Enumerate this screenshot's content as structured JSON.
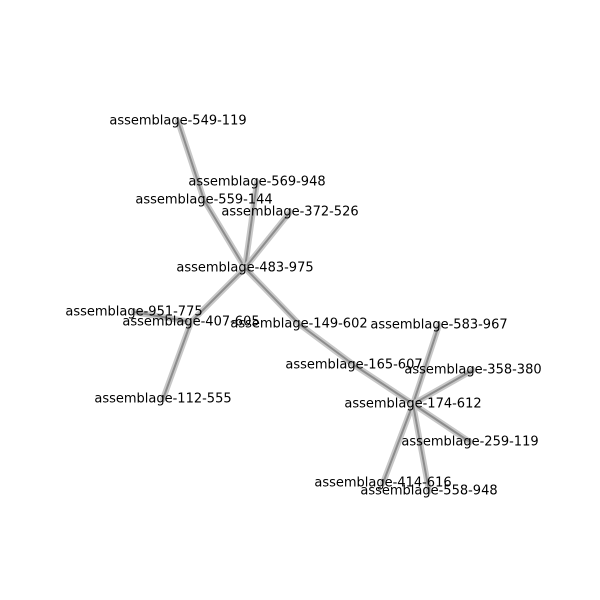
{
  "colors": {
    "background": "#ffffff",
    "edge_outer": "#c8c8c8",
    "edge_inner": "#8c8c8c",
    "label": "#000000"
  },
  "nodes": [
    {
      "id": "n549119",
      "label": "assemblage-549-119"
    },
    {
      "id": "n569948",
      "label": "assemblage-569-948"
    },
    {
      "id": "n559144",
      "label": "assemblage-559-144"
    },
    {
      "id": "n372526",
      "label": "assemblage-372-526"
    },
    {
      "id": "n483975",
      "label": "assemblage-483-975"
    },
    {
      "id": "n951775",
      "label": "assemblage-951-775"
    },
    {
      "id": "n407605",
      "label": "assemblage-407-605"
    },
    {
      "id": "n149602",
      "label": "assemblage-149-602"
    },
    {
      "id": "n583967",
      "label": "assemblage-583-967"
    },
    {
      "id": "n165607",
      "label": "assemblage-165-607"
    },
    {
      "id": "n358380",
      "label": "assemblage-358-380"
    },
    {
      "id": "n112555",
      "label": "assemblage-112-555"
    },
    {
      "id": "n174612",
      "label": "assemblage-174-612"
    },
    {
      "id": "n259119",
      "label": "assemblage-259-119"
    },
    {
      "id": "n414616",
      "label": "assemblage-414-616"
    },
    {
      "id": "n558948",
      "label": "assemblage-558-948"
    }
  ],
  "edges": [
    [
      "n549119",
      "n559144"
    ],
    [
      "n559144",
      "n483975"
    ],
    [
      "n569948",
      "n483975"
    ],
    [
      "n372526",
      "n483975"
    ],
    [
      "n483975",
      "n407605"
    ],
    [
      "n483975",
      "n149602"
    ],
    [
      "n951775",
      "n407605"
    ],
    [
      "n407605",
      "n112555"
    ],
    [
      "n149602",
      "n165607"
    ],
    [
      "n165607",
      "n174612"
    ],
    [
      "n583967",
      "n174612"
    ],
    [
      "n358380",
      "n174612"
    ],
    [
      "n174612",
      "n259119"
    ],
    [
      "n174612",
      "n414616"
    ],
    [
      "n174612",
      "n558948"
    ]
  ]
}
